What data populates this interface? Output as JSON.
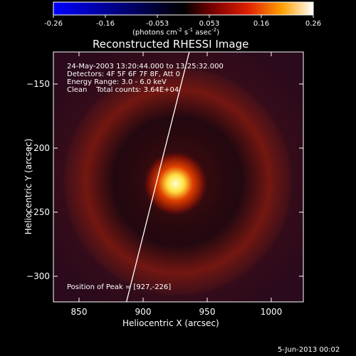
{
  "chart_data": {
    "type": "heatmap",
    "title": "Reconstructed RHESSI Image",
    "xlabel": "Heliocentric X (arcsec)",
    "ylabel": "Heliocentric Y (arcsec)",
    "xlim": [
      830,
      1025
    ],
    "ylim": [
      -320,
      -125
    ],
    "x_ticks": [
      850,
      900,
      950,
      1000
    ],
    "y_ticks": [
      -150,
      -200,
      -250,
      -300
    ],
    "colorbar": {
      "range": [
        -0.26,
        0.26
      ],
      "ticks": [
        "-0.26",
        "-0.16",
        "-0.053",
        "0.053",
        "0.16",
        "0.26"
      ],
      "label_main": "(photons cm",
      "label_exp1": "-2",
      "label_mid1": " s",
      "label_exp2": "-1",
      "label_mid2": " asec",
      "label_exp3": "-2",
      "label_end": ")",
      "colormap": "blue-black-red-yellow-white"
    },
    "info_lines": [
      "24-May-2003 13:20:44.000 to 13:25:32.000",
      "Detectors: 4F 5F 6F 7F 8F, Att 0",
      "Energy Range: 3.0 - 6.0 keV",
      "Clean    Total counts: 3.64E+04"
    ],
    "peak_label": "Position of Peak = [927,-226]",
    "peak": {
      "x": 927,
      "y": -226
    },
    "limb_line": [
      {
        "x": 887,
        "y": -320
      },
      {
        "x": 936,
        "y": -125
      }
    ],
    "ring": {
      "center_x": 927,
      "center_y": -226,
      "radius_arcsec": 68
    },
    "date_stamp": "5-Jun-2013 00:02"
  }
}
